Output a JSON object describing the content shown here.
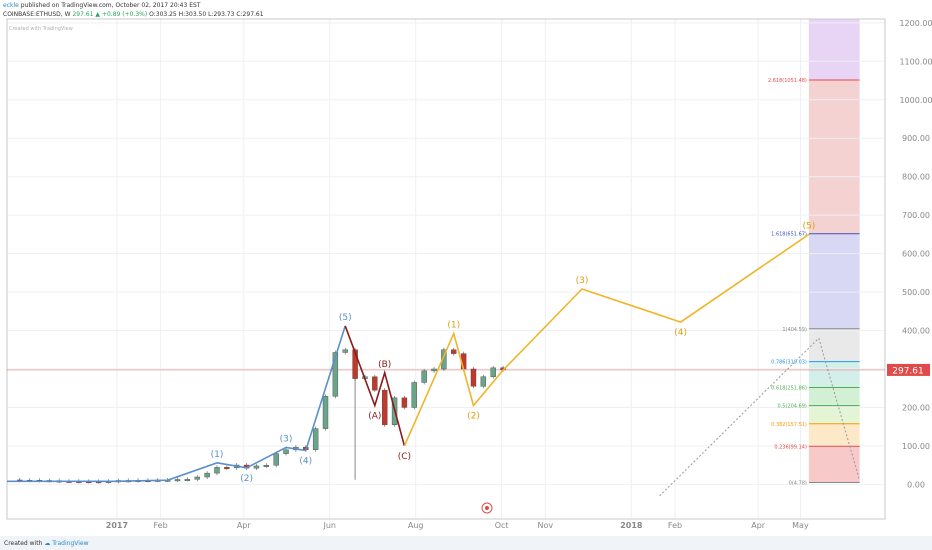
{
  "header": {
    "author": "eckle",
    "published": "published on TradingView.com, October 02, 2017 20:43 EST",
    "symbol": "COINBASE:ETHUSD, W",
    "last": "297.61",
    "change": "+0.89 (+0.3%)",
    "ohlc": "O:303.25 H:303.50 L:293.73 C:297.61",
    "watermark": "Created with TradingView"
  },
  "footer": {
    "created_with": "Created with",
    "brand": "TradingView"
  },
  "chart_data": {
    "type": "candlestick",
    "price_label": "297.61",
    "price_line": 297.61,
    "y_axis": {
      "ticks": [
        0,
        100,
        200,
        300,
        400,
        500,
        600,
        700,
        800,
        900,
        1000,
        1100,
        1200
      ],
      "tick_labels": [
        "0.00",
        "100.00",
        "200.00",
        "300.00",
        "400.00",
        "500.00",
        "600.00",
        "700.00",
        "800.00",
        "900.00",
        "1000.00",
        "1100.00",
        "1200.00"
      ],
      "range": [
        -90,
        1210
      ]
    },
    "x_axis": {
      "labels": [
        "2017",
        "Feb",
        "Apr",
        "Jun",
        "Aug",
        "Oct",
        "Nov",
        "2018",
        "Feb",
        "Apr",
        "May"
      ],
      "label_dates": [
        "2017-01-01",
        "2017-02-01",
        "2017-04-01",
        "2017-06-01",
        "2017-08-01",
        "2017-10-01",
        "2017-11-01",
        "2018-01-01",
        "2018-02-01",
        "2018-04-01",
        "2018-05-01"
      ],
      "range": [
        "2016-10-15",
        "2018-06-30"
      ]
    },
    "candles": [
      {
        "d": "2016-10-24",
        "o": 11.5,
        "c": 10.8
      },
      {
        "d": "2016-10-31",
        "o": 10.8,
        "c": 10.9
      },
      {
        "d": "2016-11-07",
        "o": 10.9,
        "c": 10.3
      },
      {
        "d": "2016-11-14",
        "o": 10.3,
        "c": 9.9
      },
      {
        "d": "2016-11-21",
        "o": 9.9,
        "c": 8.6
      },
      {
        "d": "2016-11-28",
        "o": 8.6,
        "c": 8.4
      },
      {
        "d": "2016-12-05",
        "o": 8.4,
        "c": 7.9
      },
      {
        "d": "2016-12-12",
        "o": 7.9,
        "c": 7.8
      },
      {
        "d": "2016-12-19",
        "o": 7.8,
        "c": 7.2
      },
      {
        "d": "2016-12-26",
        "o": 7.2,
        "c": 8.1
      },
      {
        "d": "2017-01-02",
        "o": 8.1,
        "c": 10.2
      },
      {
        "d": "2017-01-09",
        "o": 10.2,
        "c": 9.8
      },
      {
        "d": "2017-01-16",
        "o": 9.8,
        "c": 10.6
      },
      {
        "d": "2017-01-23",
        "o": 10.6,
        "c": 10.5
      },
      {
        "d": "2017-01-30",
        "o": 10.5,
        "c": 11.3
      },
      {
        "d": "2017-02-06",
        "o": 11.3,
        "c": 11.4
      },
      {
        "d": "2017-02-13",
        "o": 11.4,
        "c": 12.8
      },
      {
        "d": "2017-02-20",
        "o": 12.8,
        "c": 13.2
      },
      {
        "d": "2017-02-27",
        "o": 13.2,
        "c": 19.2
      },
      {
        "d": "2017-03-06",
        "o": 19.2,
        "c": 29.3
      },
      {
        "d": "2017-03-13",
        "o": 29.3,
        "c": 44.3
      },
      {
        "d": "2017-03-20",
        "o": 44.3,
        "c": 43.0
      },
      {
        "d": "2017-03-27",
        "o": 43.0,
        "c": 50.3
      },
      {
        "d": "2017-04-03",
        "o": 50.3,
        "c": 42.2
      },
      {
        "d": "2017-04-10",
        "o": 42.2,
        "c": 48.0
      },
      {
        "d": "2017-04-17",
        "o": 48.0,
        "c": 49.9
      },
      {
        "d": "2017-04-24",
        "o": 49.9,
        "c": 79.9
      },
      {
        "d": "2017-05-01",
        "o": 79.9,
        "c": 89.8
      },
      {
        "d": "2017-05-08",
        "o": 89.8,
        "c": 96.8
      },
      {
        "d": "2017-05-15",
        "o": 96.8,
        "c": 90.0
      },
      {
        "d": "2017-05-22",
        "o": 90.0,
        "c": 145.0
      },
      {
        "d": "2017-05-29",
        "o": 145.0,
        "c": 229.0
      },
      {
        "d": "2017-06-05",
        "o": 229.0,
        "c": 343.0
      },
      {
        "d": "2017-06-12",
        "o": 343.0,
        "c": 350.0
      },
      {
        "d": "2017-06-19",
        "o": 350.0,
        "c": 275.0
      },
      {
        "d": "2017-06-26",
        "o": 275.0,
        "c": 280.0
      },
      {
        "d": "2017-07-03",
        "o": 280.0,
        "c": 245.0
      },
      {
        "d": "2017-07-10",
        "o": 245.0,
        "c": 155.0
      },
      {
        "d": "2017-07-17",
        "o": 155.0,
        "c": 225.0
      },
      {
        "d": "2017-07-24",
        "o": 225.0,
        "c": 200.0
      },
      {
        "d": "2017-07-31",
        "o": 200.0,
        "c": 265.0
      },
      {
        "d": "2017-08-07",
        "o": 265.0,
        "c": 295.0
      },
      {
        "d": "2017-08-14",
        "o": 295.0,
        "c": 300.0
      },
      {
        "d": "2017-08-21",
        "o": 300.0,
        "c": 350.0
      },
      {
        "d": "2017-08-28",
        "o": 350.0,
        "c": 340.0
      },
      {
        "d": "2017-09-04",
        "o": 340.0,
        "c": 300.0
      },
      {
        "d": "2017-09-11",
        "o": 300.0,
        "c": 255.0
      },
      {
        "d": "2017-09-18",
        "o": 255.0,
        "c": 280.0
      },
      {
        "d": "2017-09-25",
        "o": 280.0,
        "c": 303.0
      },
      {
        "d": "2017-10-02",
        "o": 303.25,
        "c": 297.61
      }
    ],
    "spike": {
      "d": "2017-06-19",
      "low": 12
    },
    "blue_wave": {
      "points": [
        [
          "2016-10-15",
          8
        ],
        [
          "2017-01-01",
          8
        ],
        [
          "2017-02-06",
          11
        ],
        [
          "2017-03-13",
          56
        ],
        [
          "2017-04-03",
          43
        ],
        [
          "2017-05-01",
          96
        ],
        [
          "2017-05-15",
          88
        ],
        [
          "2017-06-12",
          412
        ]
      ],
      "labels": [
        [
          "(1)",
          "2017-03-13",
          56,
          -1
        ],
        [
          "(2)",
          "2017-04-03",
          43,
          1
        ],
        [
          "(3)",
          "2017-05-01",
          96,
          -1
        ],
        [
          "(4)",
          "2017-05-15",
          88,
          1
        ],
        [
          "(5)",
          "2017-06-12",
          412,
          -1
        ]
      ]
    },
    "red_wave": {
      "points": [
        [
          "2017-06-12",
          412
        ],
        [
          "2017-07-03",
          205
        ],
        [
          "2017-07-10",
          290
        ],
        [
          "2017-07-24",
          100
        ]
      ],
      "labels": [
        [
          "(A)",
          "2017-07-03",
          205,
          1
        ],
        [
          "(B)",
          "2017-07-10",
          290,
          -1
        ],
        [
          "(C)",
          "2017-07-24",
          100,
          1
        ]
      ]
    },
    "orange_wave": {
      "points": [
        [
          "2017-07-24",
          100
        ],
        [
          "2017-08-28",
          392
        ],
        [
          "2017-09-11",
          205
        ],
        [
          "2017-10-02",
          297
        ],
        [
          "2017-11-27",
          508
        ],
        [
          "2018-02-05",
          422
        ],
        [
          "2018-05-07",
          650
        ]
      ],
      "labels": [
        [
          "(1)",
          "2017-08-28",
          392,
          -1
        ],
        [
          "(2)",
          "2017-09-11",
          205,
          1
        ],
        [
          "(3)",
          "2017-11-27",
          508,
          -1
        ],
        [
          "(4)",
          "2018-02-05",
          422,
          1
        ],
        [
          "(5)",
          "2018-05-07",
          650,
          -1
        ]
      ]
    },
    "fib": {
      "x_start": "2018-05-07",
      "x_end": "2018-06-12",
      "levels": [
        {
          "label": "0(4.78)",
          "v": 4.78,
          "color": "#888888"
        },
        {
          "label": "0.236(99.14)",
          "v": 99.14,
          "color": "#e84a4a"
        },
        {
          "label": "0.382(157.51)",
          "v": 157.51,
          "color": "#ff9800"
        },
        {
          "label": "0.5(204.69)",
          "v": 204.69,
          "color": "#4caf50"
        },
        {
          "label": "0.618(251.86)",
          "v": 251.86,
          "color": "#4caf50"
        },
        {
          "label": "0.786(319.03)",
          "v": 319.03,
          "color": "#2196f3"
        },
        {
          "label": "1(404.59)",
          "v": 404.59,
          "color": "#888888"
        },
        {
          "label": "1.618(651.67)",
          "v": 651.67,
          "color": "#3f51b5"
        },
        {
          "label": "2.618(1051.48)",
          "v": 1051.48,
          "color": "#e84a4a"
        }
      ],
      "bands": [
        {
          "from": 4.78,
          "to": 99.14,
          "color": "#f8c9c9"
        },
        {
          "from": 99.14,
          "to": 157.51,
          "color": "#fde8c8"
        },
        {
          "from": 157.51,
          "to": 204.69,
          "color": "#e3f5d4"
        },
        {
          "from": 204.69,
          "to": 251.86,
          "color": "#d4f0d4"
        },
        {
          "from": 251.86,
          "to": 319.03,
          "color": "#d4efe9"
        },
        {
          "from": 319.03,
          "to": 404.59,
          "color": "#e9e9e9"
        },
        {
          "from": 404.59,
          "to": 651.67,
          "color": "#d8d8f4"
        },
        {
          "from": 651.67,
          "to": 1051.48,
          "color": "#f4d2d2"
        },
        {
          "from": 1051.48,
          "to": 1210,
          "color": "#e8d4f4"
        }
      ],
      "trend_from": [
        "2018-01-21",
        -30
      ],
      "trend_to": [
        "2018-05-14",
        380
      ],
      "trend_from2": [
        "2018-05-14",
        380
      ],
      "trend_to2": [
        "2018-06-12",
        10
      ]
    },
    "colors": {
      "up": "#6aa58a",
      "down": "#c0392b",
      "blue": "#5b8fcb",
      "red": "#8b1a1a",
      "orange": "#f0b429",
      "price": "#e04a4a"
    }
  }
}
